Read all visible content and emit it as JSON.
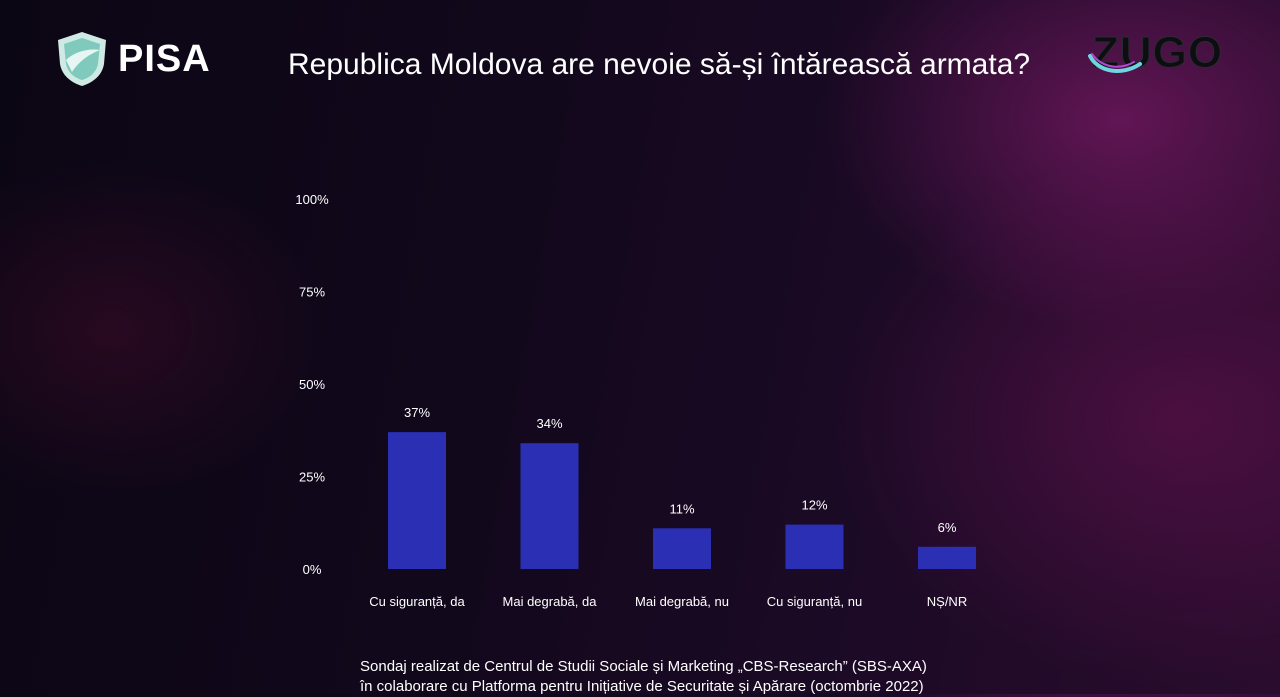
{
  "header": {
    "logo_left_text": "PISA",
    "title": "Republica Moldova are nevoie să-și întărească armata?",
    "logo_right_text": "ZUGO"
  },
  "chart_data": {
    "type": "bar",
    "title": "Republica Moldova are nevoie să-și întărească armata?",
    "categories": [
      "Cu siguranță, da",
      "Mai degrabă, da",
      "Mai degrabă, nu",
      "Cu siguranță, nu",
      "NȘ/NR"
    ],
    "values": [
      37,
      34,
      11,
      12,
      6
    ],
    "value_labels": [
      "37%",
      "34%",
      "11%",
      "12%",
      "6%"
    ],
    "yticks": [
      "0%",
      "25%",
      "50%",
      "75%",
      "100%"
    ],
    "ylim": [
      0,
      100
    ],
    "grid": false,
    "bar_color": "#2b2fb3",
    "xlabel": "",
    "ylabel": ""
  },
  "footer": {
    "line1": "Sondaj realizat de Centrul de Studii Sociale și Marketing „CBS-Research” (SBS-AXA)",
    "line2": "în colaborare cu Platforma pentru Inițiative de Securitate și Apărare (octombrie 2022)"
  }
}
